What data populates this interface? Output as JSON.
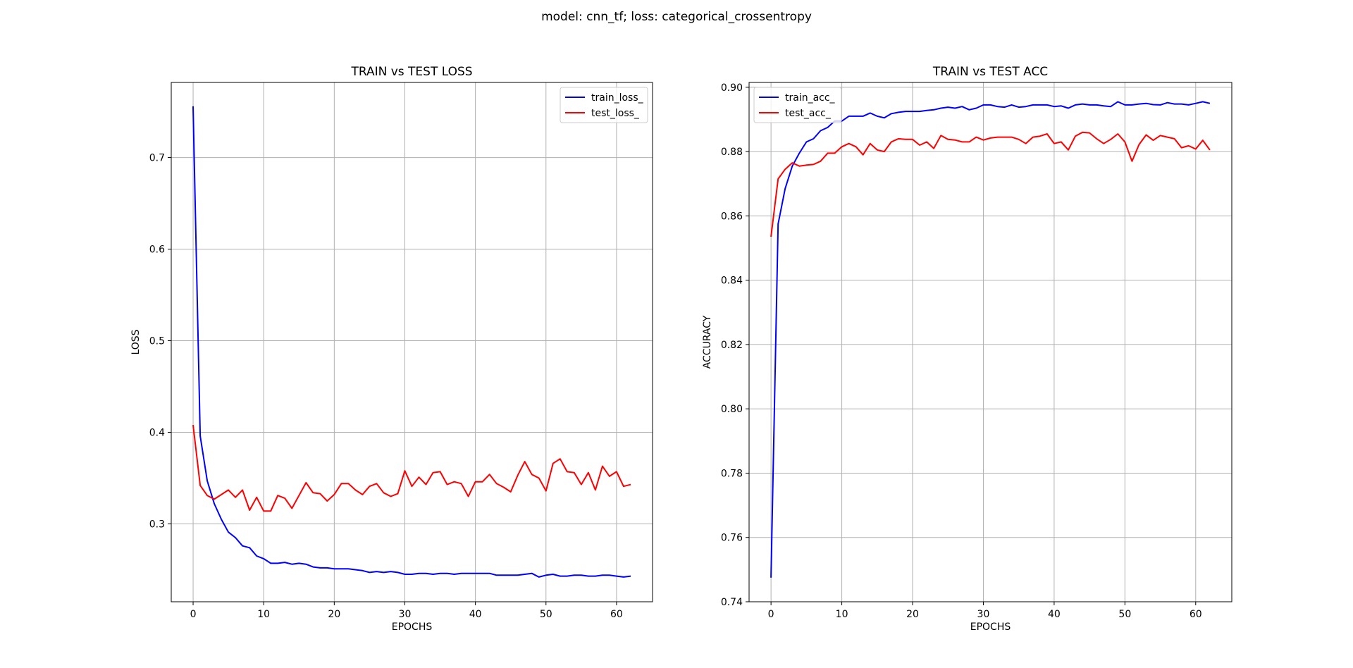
{
  "figure": {
    "suptitle": "model: cnn_tf; loss: categorical_crossentropy",
    "colors": {
      "train": "#0000ff",
      "test": "#ff0000",
      "grid": "#b0b0b0"
    }
  },
  "chart_data": [
    {
      "type": "line",
      "title": "TRAIN vs TEST LOSS",
      "xlabel": "EPOCHS",
      "ylabel": "LOSS",
      "xlim": [
        -3.1,
        65.1
      ],
      "ylim": [
        0.215,
        0.782
      ],
      "xticks": [
        0,
        10,
        20,
        30,
        40,
        50,
        60
      ],
      "yticks": [
        0.3,
        0.4,
        0.5,
        0.6,
        0.7
      ],
      "xtick_labels": [
        "0",
        "10",
        "20",
        "30",
        "40",
        "50",
        "60"
      ],
      "ytick_labels": [
        "0.3",
        "0.4",
        "0.5",
        "0.6",
        "0.7"
      ],
      "grid": true,
      "legend": "upper right",
      "x": [
        0,
        1,
        2,
        3,
        4,
        5,
        6,
        7,
        8,
        9,
        10,
        11,
        12,
        13,
        14,
        15,
        16,
        17,
        18,
        19,
        20,
        21,
        22,
        23,
        24,
        25,
        26,
        27,
        28,
        29,
        30,
        31,
        32,
        33,
        34,
        35,
        36,
        37,
        38,
        39,
        40,
        41,
        42,
        43,
        44,
        45,
        46,
        47,
        48,
        49,
        50,
        51,
        52,
        53,
        54,
        55,
        56,
        57,
        58,
        59,
        60,
        61,
        62
      ],
      "series": [
        {
          "name": "train_loss_",
          "color": "#0000ff",
          "values": [
            0.756,
            0.396,
            0.347,
            0.322,
            0.305,
            0.291,
            0.285,
            0.276,
            0.274,
            0.265,
            0.262,
            0.257,
            0.257,
            0.258,
            0.256,
            0.257,
            0.256,
            0.253,
            0.252,
            0.252,
            0.251,
            0.251,
            0.251,
            0.25,
            0.249,
            0.247,
            0.248,
            0.247,
            0.248,
            0.247,
            0.245,
            0.245,
            0.246,
            0.246,
            0.245,
            0.246,
            0.246,
            0.245,
            0.246,
            0.246,
            0.246,
            0.246,
            0.246,
            0.244,
            0.244,
            0.244,
            0.244,
            0.245,
            0.246,
            0.242,
            0.244,
            0.245,
            0.243,
            0.243,
            0.244,
            0.244,
            0.243,
            0.243,
            0.244,
            0.244,
            0.243,
            0.242,
            0.243
          ]
        },
        {
          "name": "test_loss_",
          "color": "#ff0000",
          "values": [
            0.408,
            0.342,
            0.331,
            0.327,
            0.332,
            0.337,
            0.329,
            0.337,
            0.315,
            0.329,
            0.314,
            0.314,
            0.331,
            0.328,
            0.317,
            0.331,
            0.345,
            0.334,
            0.333,
            0.325,
            0.332,
            0.344,
            0.344,
            0.337,
            0.332,
            0.341,
            0.344,
            0.334,
            0.33,
            0.333,
            0.358,
            0.341,
            0.351,
            0.343,
            0.356,
            0.357,
            0.343,
            0.346,
            0.344,
            0.33,
            0.346,
            0.346,
            0.354,
            0.344,
            0.34,
            0.335,
            0.353,
            0.368,
            0.354,
            0.35,
            0.336,
            0.366,
            0.371,
            0.357,
            0.356,
            0.343,
            0.356,
            0.337,
            0.363,
            0.352,
            0.357,
            0.341,
            0.343
          ]
        }
      ]
    },
    {
      "type": "line",
      "title": "TRAIN vs TEST ACC",
      "xlabel": "EPOCHS",
      "ylabel": "ACCURACY",
      "xlim": [
        -3.1,
        65.1
      ],
      "ylim": [
        0.74,
        0.9015
      ],
      "xticks": [
        0,
        10,
        20,
        30,
        40,
        50,
        60
      ],
      "yticks": [
        0.74,
        0.76,
        0.78,
        0.8,
        0.82,
        0.84,
        0.86,
        0.88,
        0.9
      ],
      "xtick_labels": [
        "0",
        "10",
        "20",
        "30",
        "40",
        "50",
        "60"
      ],
      "ytick_labels": [
        "0.74",
        "0.76",
        "0.78",
        "0.80",
        "0.82",
        "0.84",
        "0.86",
        "0.88",
        "0.90"
      ],
      "grid": true,
      "legend": "upper left",
      "x": [
        0,
        1,
        2,
        3,
        4,
        5,
        6,
        7,
        8,
        9,
        10,
        11,
        12,
        13,
        14,
        15,
        16,
        17,
        18,
        19,
        20,
        21,
        22,
        23,
        24,
        25,
        26,
        27,
        28,
        29,
        30,
        31,
        32,
        33,
        34,
        35,
        36,
        37,
        38,
        39,
        40,
        41,
        42,
        43,
        44,
        45,
        46,
        47,
        48,
        49,
        50,
        51,
        52,
        53,
        54,
        55,
        56,
        57,
        58,
        59,
        60,
        61,
        62
      ],
      "series": [
        {
          "name": "train_acc_",
          "color": "#0000ff",
          "values": [
            0.7475,
            0.8575,
            0.8685,
            0.8755,
            0.8795,
            0.883,
            0.884,
            0.8865,
            0.8875,
            0.8895,
            0.8895,
            0.891,
            0.891,
            0.891,
            0.892,
            0.891,
            0.8905,
            0.8918,
            0.8922,
            0.8925,
            0.8925,
            0.8925,
            0.8928,
            0.893,
            0.8935,
            0.8938,
            0.8935,
            0.894,
            0.893,
            0.8935,
            0.8945,
            0.8945,
            0.894,
            0.8938,
            0.8945,
            0.8938,
            0.894,
            0.8945,
            0.8945,
            0.8945,
            0.894,
            0.8942,
            0.8935,
            0.8945,
            0.8948,
            0.8945,
            0.8945,
            0.8942,
            0.894,
            0.8955,
            0.8945,
            0.8945,
            0.8948,
            0.895,
            0.8946,
            0.8945,
            0.8952,
            0.8948,
            0.8948,
            0.8945,
            0.895,
            0.8955,
            0.895
          ]
        },
        {
          "name": "test_acc_",
          "color": "#ff0000",
          "values": [
            0.8535,
            0.8715,
            0.8745,
            0.8765,
            0.8755,
            0.8758,
            0.876,
            0.877,
            0.8795,
            0.8795,
            0.8815,
            0.8825,
            0.8815,
            0.879,
            0.8825,
            0.8805,
            0.88,
            0.883,
            0.884,
            0.8838,
            0.8838,
            0.882,
            0.883,
            0.881,
            0.885,
            0.8838,
            0.8836,
            0.883,
            0.883,
            0.8845,
            0.8836,
            0.8842,
            0.8845,
            0.8845,
            0.8845,
            0.8838,
            0.8825,
            0.8845,
            0.8848,
            0.8855,
            0.8825,
            0.883,
            0.8805,
            0.8848,
            0.886,
            0.8858,
            0.884,
            0.8825,
            0.8838,
            0.8855,
            0.883,
            0.877,
            0.8822,
            0.8852,
            0.8835,
            0.885,
            0.8845,
            0.884,
            0.8812,
            0.8818,
            0.8808,
            0.8835,
            0.8805
          ]
        }
      ]
    }
  ]
}
